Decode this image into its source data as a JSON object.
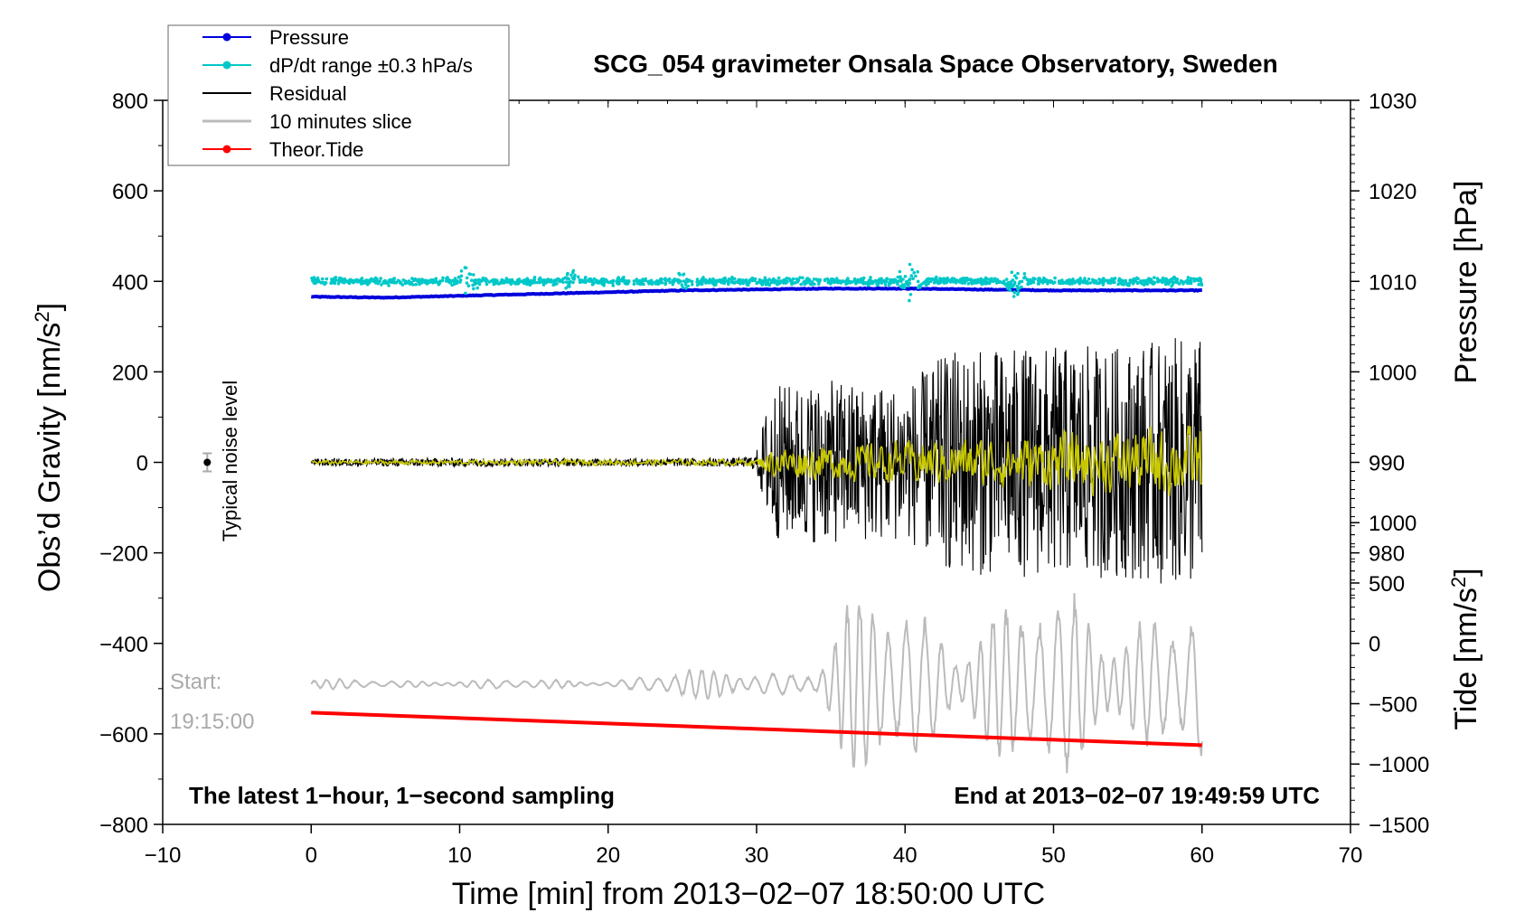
{
  "chart_data": {
    "type": "line",
    "title": "SCG_054 gravimeter Onsala Space Observatory, Sweden",
    "xlabel": "Time [min] from 2013−02−07 18:50:00 UTC",
    "ylabel_left_pre": "Obs’d Gravity [nm/s",
    "ylabel_left_sup": "2",
    "ylabel_left_post": "]",
    "ylabel_pressure": "Pressure [hPa]",
    "ylabel_tide_pre": "Tide [nm/s",
    "ylabel_tide_sup": "2",
    "ylabel_tide_post": "]",
    "xlim": [
      -10,
      70
    ],
    "ylim": [
      -800,
      800
    ],
    "x_ticks": [
      -10,
      0,
      10,
      20,
      30,
      40,
      50,
      60,
      70
    ],
    "x_tick_labels": [
      "−10",
      "0",
      "10",
      "20",
      "30",
      "40",
      "50",
      "60",
      "70"
    ],
    "y_ticks": [
      800,
      600,
      400,
      200,
      0,
      -200,
      -400,
      -600,
      -800
    ],
    "y_tick_labels": [
      "800",
      "600",
      "400",
      "200",
      "0",
      "−200",
      "−400",
      "−600",
      "−800"
    ],
    "pressure_axis": {
      "ticks": [
        1030,
        1020,
        1010,
        1000,
        990,
        980
      ],
      "labels": [
        "1030",
        "1020",
        "1010",
        "1000",
        "990",
        "980"
      ],
      "scale_nm_per_hPa": 20,
      "anchor_hPa": 1030,
      "anchor_gravity": 800
    },
    "tide_axis": {
      "ticks": [
        1000,
        500,
        0,
        -500,
        -1000,
        -1500
      ],
      "labels": [
        "1000",
        "500",
        "0",
        "−500",
        "−1000",
        "−1500"
      ],
      "scale_gravity_per_nm": 0.2667,
      "anchor_tide": -1500,
      "anchor_gravity": -800
    },
    "legend": {
      "position": "top-left",
      "entries": [
        {
          "label": "Pressure",
          "color": "#0000dd",
          "marker": true
        },
        {
          "label": "dP/dt range ±0.3 hPa/s",
          "color": "#00c8c8",
          "marker": true
        },
        {
          "label": "Residual",
          "color": "#000000",
          "marker": false
        },
        {
          "label": "10 minutes slice",
          "color": "#bbbbbb",
          "marker": false
        },
        {
          "label": "Theor.Tide",
          "color": "#ff0000",
          "marker": true
        }
      ]
    },
    "series": [
      {
        "name": "Pressure",
        "color": "#0000dd",
        "axis": "pressure",
        "x_start": 0,
        "x_end": 60,
        "values_hPa": [
          1008.3,
          1008.2,
          1008.4,
          1008.6,
          1008.8,
          1009.0,
          1009.1,
          1009.2,
          1009.2,
          1009.1,
          1009.0,
          1009.0,
          1009.0
        ]
      },
      {
        "name": "dP/dt range ±0.3 hPa/s",
        "color": "#00c8c8",
        "axis": "gravity",
        "x_start": 0,
        "x_end": 60,
        "baseline": 400,
        "scatter_amplitude": 8,
        "bursts": [
          {
            "x": 10.5,
            "amplitude": 40
          },
          {
            "x": 17.5,
            "amplitude": 25
          },
          {
            "x": 25,
            "amplitude": 22
          },
          {
            "x": 40.3,
            "amplitude": 60
          },
          {
            "x": 47.5,
            "amplitude": 45
          },
          {
            "x": 58,
            "amplitude": 12
          }
        ]
      },
      {
        "name": "Residual",
        "color": "#000000",
        "axis": "gravity",
        "x_start": 0,
        "x_end": 60,
        "envelope_x": [
          0,
          10,
          20,
          29,
          30,
          31,
          35,
          40,
          43,
          50,
          55,
          60
        ],
        "envelope_amplitude": [
          12,
          14,
          12,
          14,
          25,
          180,
          190,
          180,
          260,
          270,
          270,
          300
        ]
      },
      {
        "name": "Residual (smoothed)",
        "color": "#c8c800",
        "axis": "gravity",
        "x_start": 0,
        "x_end": 60,
        "legend": false,
        "envelope_x": [
          0,
          30,
          31,
          40,
          50,
          60
        ],
        "envelope_amplitude": [
          4,
          6,
          30,
          40,
          55,
          70
        ]
      },
      {
        "name": "10 minutes slice",
        "color": "#bbbbbb",
        "axis": "tide",
        "x_start": 0,
        "x_end": 60,
        "baseline_gravity": -490,
        "envelope_x": [
          0,
          20,
          26,
          30,
          34,
          36.5,
          45,
          60
        ],
        "envelope_amplitude": [
          12,
          12,
          40,
          40,
          50,
          230,
          220,
          250
        ]
      },
      {
        "name": "Theor.Tide",
        "color": "#ff0000",
        "axis": "gravity",
        "x": [
          0,
          60
        ],
        "values": [
          -553,
          -625
        ]
      }
    ],
    "annotations": {
      "noise_label": "Typical noise level",
      "noise_marker": {
        "x": -7,
        "y": 0,
        "error": 20
      },
      "start_label": "Start:",
      "start_time": "19:15:00",
      "bottom_left": "The latest 1−hour, 1−second sampling",
      "bottom_right": "End at 2013−02−07 19:49:59 UTC"
    }
  }
}
